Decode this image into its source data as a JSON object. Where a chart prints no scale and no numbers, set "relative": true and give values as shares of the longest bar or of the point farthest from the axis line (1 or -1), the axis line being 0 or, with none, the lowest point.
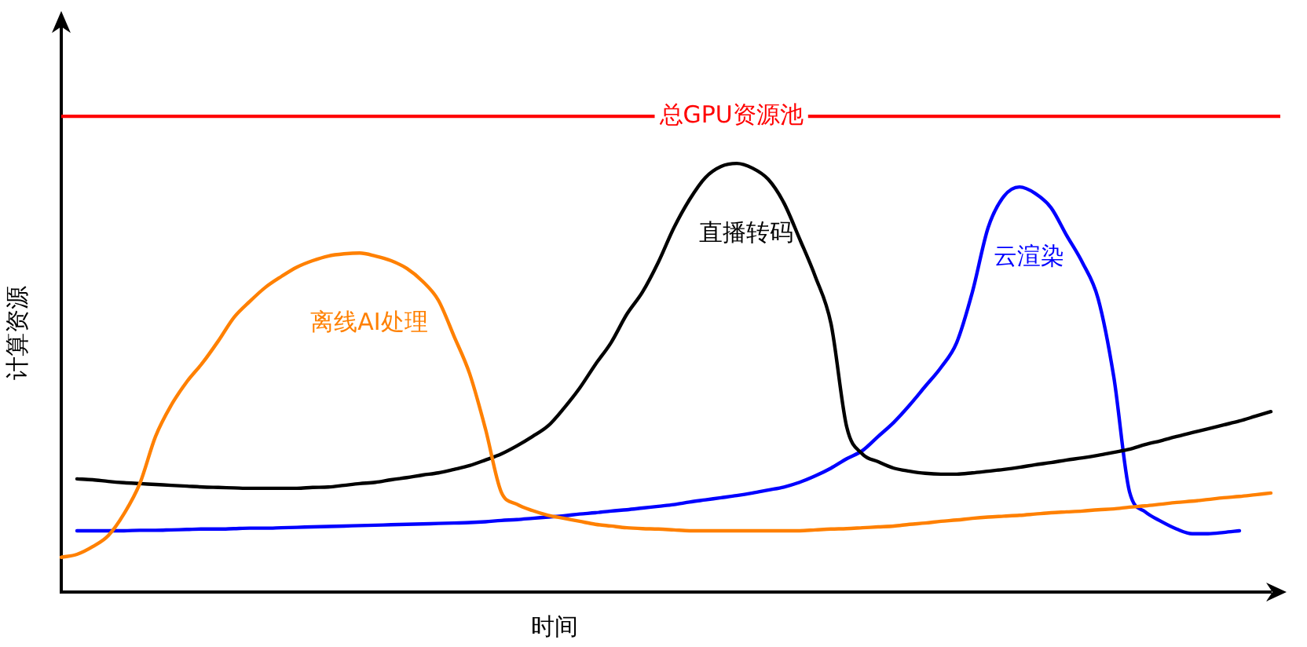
{
  "chart_data": {
    "type": "line",
    "xlabel": "时间",
    "ylabel": "计算资源",
    "relative": true,
    "tick_labels": false,
    "legend": false,
    "marker": "none",
    "categories": [
      null,
      null,
      null,
      null,
      null,
      null,
      null,
      null,
      null,
      null,
      null,
      null,
      null,
      null,
      null,
      null,
      null,
      null,
      null,
      null,
      null,
      null,
      null,
      null,
      null,
      null,
      null,
      null,
      null,
      null,
      null,
      null,
      null,
      null,
      null,
      null,
      null,
      null,
      null,
      null,
      null,
      null,
      null,
      null,
      null,
      null,
      null,
      null,
      null,
      null,
      null,
      null,
      null,
      null,
      null,
      null,
      null,
      null,
      null,
      null,
      null,
      null,
      null,
      null,
      null,
      null,
      null,
      null,
      null,
      null,
      null,
      null,
      null,
      null,
      null,
      null,
      null,
      null
    ],
    "series": [
      {
        "name": "离线AI处理",
        "color": "#ff8000",
        "values": [
          0.081,
          0.088,
          0.106,
          0.132,
          0.183,
          0.253,
          0.363,
          0.436,
          0.491,
          0.535,
          0.586,
          0.641,
          0.678,
          0.711,
          0.736,
          0.758,
          0.773,
          0.784,
          0.789,
          0.791,
          0.784,
          0.773,
          0.755,
          0.725,
          0.681,
          0.597,
          0.509,
          0.381,
          0.234,
          0.205,
          0.19,
          0.179,
          0.172,
          0.165,
          0.158,
          0.154,
          0.15,
          0.148,
          0.147,
          0.145,
          0.143,
          0.143,
          0.143,
          0.143,
          0.143,
          0.143,
          0.143,
          0.143,
          0.145,
          0.147,
          0.148,
          0.15,
          0.152,
          0.154,
          0.158,
          0.161,
          0.165,
          0.168,
          0.172,
          0.175,
          0.177,
          0.179,
          0.182,
          0.185,
          0.187,
          0.189,
          0.192,
          0.194,
          0.198,
          0.201,
          0.205,
          0.209,
          0.212,
          0.216,
          0.22,
          0.223,
          0.227,
          0.231
        ]
      },
      {
        "name": "直播转码",
        "color": "#000000",
        "values": [
          null,
          0.264,
          0.262,
          0.258,
          0.255,
          0.253,
          0.251,
          0.249,
          0.247,
          0.245,
          0.244,
          0.243,
          0.242,
          0.242,
          0.242,
          0.242,
          0.244,
          0.245,
          0.249,
          0.253,
          0.256,
          0.262,
          0.267,
          0.273,
          0.278,
          0.286,
          0.295,
          0.308,
          0.322,
          0.341,
          0.363,
          0.388,
          0.429,
          0.476,
          0.531,
          0.582,
          0.648,
          0.7,
          0.769,
          0.85,
          0.916,
          0.967,
          0.993,
          1,
          0.989,
          0.963,
          0.908,
          0.824,
          0.736,
          0.626,
          0.385,
          0.322,
          0.304,
          0.289,
          0.282,
          0.277,
          0.275,
          0.275,
          0.278,
          0.282,
          0.286,
          0.291,
          0.297,
          0.302,
          0.308,
          0.313,
          0.319,
          0.326,
          0.333,
          0.344,
          0.353,
          0.363,
          0.372,
          0.381,
          0.39,
          0.399,
          0.41,
          0.421
        ]
      },
      {
        "name": "云渲染",
        "color": "#0000ff",
        "values": [
          null,
          0.143,
          0.143,
          0.143,
          0.143,
          0.144,
          0.144,
          0.145,
          0.146,
          0.147,
          0.147,
          0.148,
          0.149,
          0.149,
          0.15,
          0.151,
          0.152,
          0.153,
          0.154,
          0.155,
          0.156,
          0.157,
          0.158,
          0.159,
          0.16,
          0.161,
          0.162,
          0.164,
          0.167,
          0.169,
          0.172,
          0.175,
          0.178,
          0.182,
          0.185,
          0.189,
          0.192,
          0.196,
          0.2,
          0.204,
          0.21,
          0.215,
          0.22,
          0.225,
          0.231,
          0.238,
          0.245,
          0.256,
          0.271,
          0.289,
          0.311,
          0.33,
          0.363,
          0.396,
          0.436,
          0.48,
          0.524,
          0.582,
          0.7,
          0.85,
          0.923,
          0.945,
          0.93,
          0.897,
          0.832,
          0.769,
          0.685,
          0.502,
          0.234,
          0.187,
          0.165,
          0.147,
          0.136,
          0.136,
          0.139,
          0.143,
          null,
          null
        ]
      }
    ],
    "ref_lines": [
      {
        "axis": "y",
        "value": 1.11,
        "label": "总GPU资源池",
        "color": "#ff0000"
      }
    ]
  }
}
